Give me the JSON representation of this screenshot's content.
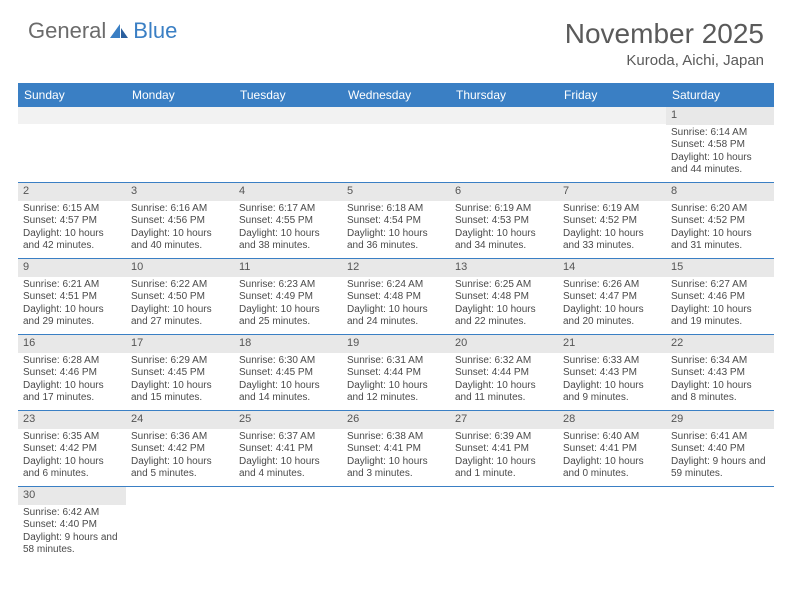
{
  "logo": {
    "text_a": "General",
    "text_b": "Blue"
  },
  "title": {
    "month": "November 2025",
    "location": "Kuroda, Aichi, Japan"
  },
  "colors": {
    "header_blue": "#3a7fc4",
    "daynum_bg": "#e8e8e8",
    "text": "#4a4a4a",
    "title_text": "#5a5a5a"
  },
  "day_names": [
    "Sunday",
    "Monday",
    "Tuesday",
    "Wednesday",
    "Thursday",
    "Friday",
    "Saturday"
  ],
  "first_weekday": 6,
  "days": [
    {
      "d": 1,
      "sr": "6:14 AM",
      "ss": "4:58 PM",
      "dl": "10 hours and 44 minutes."
    },
    {
      "d": 2,
      "sr": "6:15 AM",
      "ss": "4:57 PM",
      "dl": "10 hours and 42 minutes."
    },
    {
      "d": 3,
      "sr": "6:16 AM",
      "ss": "4:56 PM",
      "dl": "10 hours and 40 minutes."
    },
    {
      "d": 4,
      "sr": "6:17 AM",
      "ss": "4:55 PM",
      "dl": "10 hours and 38 minutes."
    },
    {
      "d": 5,
      "sr": "6:18 AM",
      "ss": "4:54 PM",
      "dl": "10 hours and 36 minutes."
    },
    {
      "d": 6,
      "sr": "6:19 AM",
      "ss": "4:53 PM",
      "dl": "10 hours and 34 minutes."
    },
    {
      "d": 7,
      "sr": "6:19 AM",
      "ss": "4:52 PM",
      "dl": "10 hours and 33 minutes."
    },
    {
      "d": 8,
      "sr": "6:20 AM",
      "ss": "4:52 PM",
      "dl": "10 hours and 31 minutes."
    },
    {
      "d": 9,
      "sr": "6:21 AM",
      "ss": "4:51 PM",
      "dl": "10 hours and 29 minutes."
    },
    {
      "d": 10,
      "sr": "6:22 AM",
      "ss": "4:50 PM",
      "dl": "10 hours and 27 minutes."
    },
    {
      "d": 11,
      "sr": "6:23 AM",
      "ss": "4:49 PM",
      "dl": "10 hours and 25 minutes."
    },
    {
      "d": 12,
      "sr": "6:24 AM",
      "ss": "4:48 PM",
      "dl": "10 hours and 24 minutes."
    },
    {
      "d": 13,
      "sr": "6:25 AM",
      "ss": "4:48 PM",
      "dl": "10 hours and 22 minutes."
    },
    {
      "d": 14,
      "sr": "6:26 AM",
      "ss": "4:47 PM",
      "dl": "10 hours and 20 minutes."
    },
    {
      "d": 15,
      "sr": "6:27 AM",
      "ss": "4:46 PM",
      "dl": "10 hours and 19 minutes."
    },
    {
      "d": 16,
      "sr": "6:28 AM",
      "ss": "4:46 PM",
      "dl": "10 hours and 17 minutes."
    },
    {
      "d": 17,
      "sr": "6:29 AM",
      "ss": "4:45 PM",
      "dl": "10 hours and 15 minutes."
    },
    {
      "d": 18,
      "sr": "6:30 AM",
      "ss": "4:45 PM",
      "dl": "10 hours and 14 minutes."
    },
    {
      "d": 19,
      "sr": "6:31 AM",
      "ss": "4:44 PM",
      "dl": "10 hours and 12 minutes."
    },
    {
      "d": 20,
      "sr": "6:32 AM",
      "ss": "4:44 PM",
      "dl": "10 hours and 11 minutes."
    },
    {
      "d": 21,
      "sr": "6:33 AM",
      "ss": "4:43 PM",
      "dl": "10 hours and 9 minutes."
    },
    {
      "d": 22,
      "sr": "6:34 AM",
      "ss": "4:43 PM",
      "dl": "10 hours and 8 minutes."
    },
    {
      "d": 23,
      "sr": "6:35 AM",
      "ss": "4:42 PM",
      "dl": "10 hours and 6 minutes."
    },
    {
      "d": 24,
      "sr": "6:36 AM",
      "ss": "4:42 PM",
      "dl": "10 hours and 5 minutes."
    },
    {
      "d": 25,
      "sr": "6:37 AM",
      "ss": "4:41 PM",
      "dl": "10 hours and 4 minutes."
    },
    {
      "d": 26,
      "sr": "6:38 AM",
      "ss": "4:41 PM",
      "dl": "10 hours and 3 minutes."
    },
    {
      "d": 27,
      "sr": "6:39 AM",
      "ss": "4:41 PM",
      "dl": "10 hours and 1 minute."
    },
    {
      "d": 28,
      "sr": "6:40 AM",
      "ss": "4:41 PM",
      "dl": "10 hours and 0 minutes."
    },
    {
      "d": 29,
      "sr": "6:41 AM",
      "ss": "4:40 PM",
      "dl": "9 hours and 59 minutes."
    },
    {
      "d": 30,
      "sr": "6:42 AM",
      "ss": "4:40 PM",
      "dl": "9 hours and 58 minutes."
    }
  ],
  "labels": {
    "sunrise": "Sunrise:",
    "sunset": "Sunset:",
    "daylight": "Daylight:"
  }
}
